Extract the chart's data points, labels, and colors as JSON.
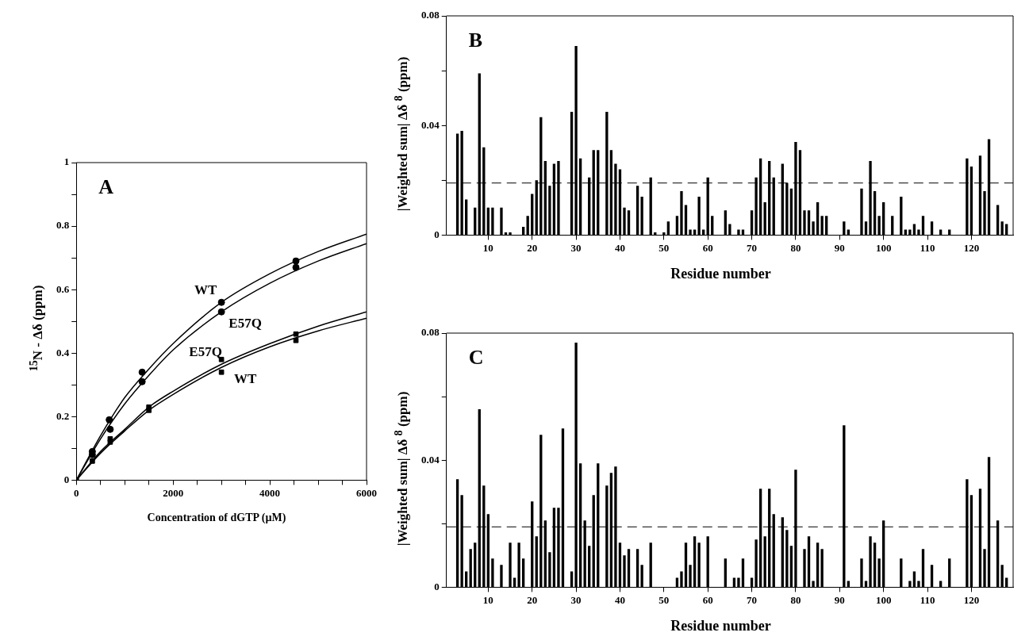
{
  "chart_data": [
    {
      "type": "scatter",
      "xlabel": "Concentration of dGTP (µM)",
      "ylabel": "$^{15}$N - Δδ (ppm)",
      "xlim": [
        0,
        6000
      ],
      "xticks": [
        0,
        {
          "value": 500,
          "label": null
        },
        {
          "value": 1000,
          "label": null
        },
        {
          "value": 1500,
          "label": null
        },
        2000,
        {
          "value": 2500,
          "label": null
        },
        {
          "value": 3000,
          "label": null
        },
        {
          "value": 3500,
          "label": null
        },
        4000,
        {
          "value": 4500,
          "label": null
        },
        {
          "value": 5000,
          "label": null
        },
        {
          "value": 5500,
          "label": null
        },
        6000
      ],
      "ylim": [
        0,
        1
      ],
      "yticks": [
        0,
        {
          "value": 0.1,
          "label": null
        },
        0.2,
        {
          "value": 0.3,
          "label": null
        },
        0.4,
        {
          "value": 0.5,
          "label": null
        },
        0.6,
        {
          "value": 0.7,
          "label": null
        },
        0.8,
        {
          "value": 0.9,
          "label": null
        },
        1
      ],
      "annotations": [
        "A"
      ],
      "series": [
        {
          "type": "scatter",
          "marker": "circle",
          "color": "#000000",
          "x": [
            330,
            680,
            1360,
            3000,
            4540
          ],
          "values": [
            0.09,
            0.19,
            0.34,
            0.56,
            0.69
          ]
        },
        {
          "type": "scatter",
          "marker": "circle",
          "color": "#000000",
          "x": [
            330,
            700,
            1360,
            3000,
            4540
          ],
          "values": [
            0.08,
            0.16,
            0.31,
            0.53,
            0.67
          ]
        },
        {
          "type": "scatter",
          "marker": "square",
          "color": "#000000",
          "x": [
            0,
            330,
            700,
            1500,
            3000,
            4540
          ],
          "values": [
            0,
            0.06,
            0.12,
            0.22,
            0.38,
            0.46
          ]
        },
        {
          "type": "scatter",
          "marker": "square",
          "color": "#000000",
          "x": [
            700,
            1500,
            3000,
            4540
          ],
          "values": [
            0.13,
            0.23,
            0.34,
            0.44
          ]
        },
        {
          "type": "line",
          "name": "WT",
          "marker": "none",
          "color": "#000000",
          "x": [
            0,
            500,
            1000,
            1500,
            2000,
            3000,
            4000,
            5000,
            6000
          ],
          "values": [
            0,
            0.14,
            0.26,
            0.35,
            0.43,
            0.56,
            0.65,
            0.72,
            0.775
          ]
        },
        {
          "type": "line",
          "name": "E57Q",
          "marker": "none",
          "color": "#000000",
          "x": [
            0,
            500,
            1000,
            1500,
            2000,
            3000,
            4000,
            5000,
            6000
          ],
          "values": [
            0,
            0.13,
            0.24,
            0.33,
            0.41,
            0.53,
            0.62,
            0.69,
            0.745
          ]
        },
        {
          "type": "line",
          "name": "E57Q",
          "marker": "none",
          "color": "#000000",
          "x": [
            0,
            500,
            1000,
            1500,
            2000,
            3000,
            4000,
            5000,
            6000
          ],
          "values": [
            0,
            0.09,
            0.16,
            0.23,
            0.28,
            0.365,
            0.43,
            0.485,
            0.53
          ]
        },
        {
          "type": "line",
          "name": "WT",
          "marker": "none",
          "color": "#000000",
          "x": [
            0,
            500,
            1000,
            1500,
            2000,
            3000,
            4000,
            5000,
            6000
          ],
          "values": [
            0,
            0.085,
            0.155,
            0.22,
            0.27,
            0.355,
            0.42,
            0.47,
            0.51
          ]
        }
      ]
    },
    {
      "type": "bar",
      "xlabel": "Residue number",
      "ylabel": "|Weighted sum| Δδ $^{8}$ (ppm)",
      "categories": [
        null,
        null,
        null,
        null,
        null,
        null,
        null,
        null,
        null,
        "10",
        null,
        null,
        null,
        null,
        null,
        null,
        null,
        null,
        null,
        "20",
        null,
        null,
        null,
        null,
        null,
        null,
        null,
        null,
        null,
        "30",
        null,
        null,
        null,
        null,
        null,
        null,
        null,
        null,
        null,
        "40",
        null,
        null,
        null,
        null,
        null,
        null,
        null,
        null,
        null,
        "50",
        null,
        null,
        null,
        null,
        null,
        null,
        null,
        null,
        null,
        "60",
        null,
        null,
        null,
        null,
        null,
        null,
        null,
        null,
        null,
        "70",
        null,
        null,
        null,
        null,
        null,
        null,
        null,
        null,
        null,
        "80",
        null,
        null,
        null,
        null,
        null,
        null,
        null,
        null,
        null,
        "90",
        null,
        null,
        null,
        null,
        null,
        null,
        null,
        null,
        null,
        "100",
        null,
        null,
        null,
        null,
        null,
        null,
        null,
        null,
        null,
        "110",
        null,
        null,
        null,
        null,
        null,
        null,
        null,
        null,
        null,
        "120",
        null,
        null,
        null,
        null,
        null,
        null,
        null,
        null,
        null
      ],
      "ylim": [
        0,
        0.08
      ],
      "yticks": [
        0,
        {
          "value": 0.02,
          "label": null
        },
        0.04,
        {
          "value": 0.06,
          "label": null
        },
        0.08
      ],
      "annotations": [
        "B"
      ],
      "ref_lines": [
        {
          "axis": "y",
          "value": 0.019,
          "line_style": "dashed",
          "color": "#000000"
        }
      ],
      "series": [
        {
          "color": "#000000",
          "values": [
            null,
            null,
            0.037,
            0.038,
            0.013,
            null,
            0.01,
            0.059,
            0.032,
            0.01,
            0.01,
            null,
            0.01,
            0.001,
            0.001,
            null,
            null,
            0.003,
            0.007,
            0.015,
            0.02,
            0.043,
            0.027,
            0.018,
            0.026,
            0.027,
            null,
            null,
            0.045,
            0.069,
            0.028,
            null,
            0.021,
            0.031,
            0.031,
            null,
            0.045,
            0.031,
            0.026,
            0.024,
            0.01,
            0.009,
            null,
            0.018,
            0.014,
            null,
            0.021,
            0.001,
            null,
            0.001,
            0.005,
            null,
            0.007,
            0.016,
            0.011,
            0.002,
            0.002,
            0.014,
            0.002,
            0.021,
            0.007,
            null,
            null,
            0.009,
            0.004,
            null,
            0.002,
            0.002,
            null,
            0.009,
            0.021,
            0.028,
            0.012,
            0.027,
            0.021,
            null,
            0.026,
            0.019,
            0.017,
            0.034,
            0.031,
            0.009,
            0.009,
            0.005,
            0.012,
            0.007,
            0.007,
            null,
            null,
            null,
            0.005,
            0.002,
            null,
            null,
            0.017,
            0.005,
            0.027,
            0.016,
            0.007,
            0.012,
            null,
            0.007,
            null,
            0.014,
            0.002,
            0.002,
            0.004,
            0.002,
            0.007,
            null,
            0.005,
            null,
            0.002,
            null,
            0.002,
            null,
            null,
            null,
            0.028,
            0.025,
            null,
            0.029,
            0.016,
            0.035,
            null,
            0.011,
            0.005,
            0.004,
            null
          ]
        }
      ]
    },
    {
      "type": "bar",
      "xlabel": "Residue number",
      "ylabel": "|Weighted sum| Δδ $^{8}$ (ppm)",
      "categories": [
        null,
        null,
        null,
        null,
        null,
        null,
        null,
        null,
        null,
        "10",
        null,
        null,
        null,
        null,
        null,
        null,
        null,
        null,
        null,
        "20",
        null,
        null,
        null,
        null,
        null,
        null,
        null,
        null,
        null,
        "30",
        null,
        null,
        null,
        null,
        null,
        null,
        null,
        null,
        null,
        "40",
        null,
        null,
        null,
        null,
        null,
        null,
        null,
        null,
        null,
        "50",
        null,
        null,
        null,
        null,
        null,
        null,
        null,
        null,
        null,
        "60",
        null,
        null,
        null,
        null,
        null,
        null,
        null,
        null,
        null,
        "70",
        null,
        null,
        null,
        null,
        null,
        null,
        null,
        null,
        null,
        "80",
        null,
        null,
        null,
        null,
        null,
        null,
        null,
        null,
        null,
        "90",
        null,
        null,
        null,
        null,
        null,
        null,
        null,
        null,
        null,
        "100",
        null,
        null,
        null,
        null,
        null,
        null,
        null,
        null,
        null,
        "110",
        null,
        null,
        null,
        null,
        null,
        null,
        null,
        null,
        null,
        "120",
        null,
        null,
        null,
        null,
        null,
        null,
        null,
        null,
        null
      ],
      "ylim": [
        0,
        0.08
      ],
      "yticks": [
        0,
        {
          "value": 0.02,
          "label": null
        },
        0.04,
        {
          "value": 0.06,
          "label": null
        },
        0.08
      ],
      "annotations": [
        "C"
      ],
      "ref_lines": [
        {
          "axis": "y",
          "value": 0.019,
          "line_style": "dashed",
          "color": "#000000"
        }
      ],
      "series": [
        {
          "color": "#000000",
          "values": [
            null,
            null,
            0.034,
            0.029,
            0.005,
            0.012,
            0.014,
            0.056,
            0.032,
            0.023,
            0.009,
            null,
            0.007,
            null,
            0.014,
            0.003,
            0.014,
            0.009,
            null,
            0.027,
            0.016,
            0.048,
            0.021,
            0.011,
            0.025,
            0.025,
            0.05,
            null,
            0.005,
            0.077,
            0.039,
            0.021,
            0.013,
            0.029,
            0.039,
            null,
            0.032,
            0.036,
            0.038,
            0.014,
            0.01,
            0.012,
            null,
            0.012,
            0.007,
            null,
            0.014,
            null,
            null,
            null,
            null,
            null,
            0.003,
            0.005,
            0.014,
            0.007,
            0.016,
            0.014,
            null,
            0.016,
            null,
            null,
            null,
            0.009,
            null,
            0.003,
            0.003,
            0.009,
            null,
            0.003,
            0.015,
            0.031,
            0.016,
            0.031,
            0.023,
            null,
            0.022,
            0.018,
            0.013,
            0.037,
            null,
            0.012,
            0.016,
            0.002,
            0.014,
            0.012,
            null,
            null,
            null,
            null,
            0.051,
            0.002,
            null,
            null,
            0.009,
            0.002,
            0.016,
            0.014,
            0.009,
            0.021,
            null,
            null,
            null,
            0.009,
            null,
            0.002,
            0.005,
            0.002,
            0.012,
            null,
            0.007,
            null,
            0.002,
            null,
            0.009,
            null,
            null,
            null,
            0.034,
            0.029,
            null,
            0.031,
            0.012,
            0.041,
            null,
            0.021,
            0.007,
            0.003,
            null
          ]
        }
      ]
    }
  ]
}
